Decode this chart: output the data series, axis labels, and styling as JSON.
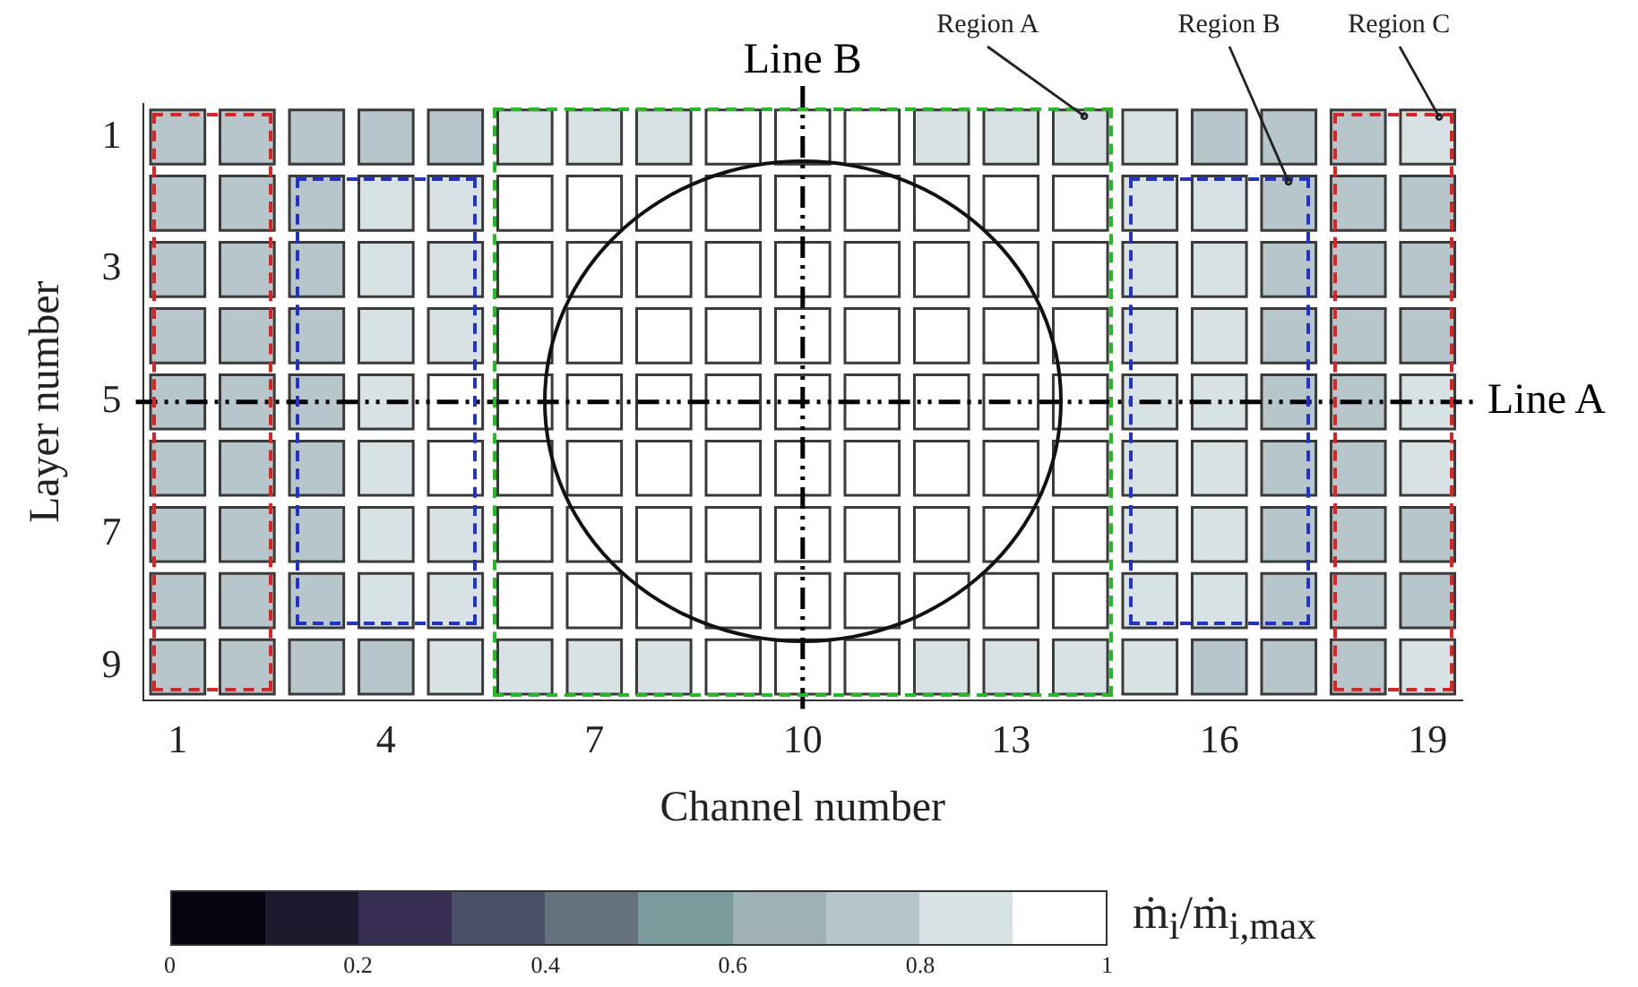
{
  "chart_data": {
    "type": "heatmap",
    "xlabel": "Channel number",
    "ylabel": "Layer number",
    "clabel": "ṁ$_{i}$/ṁ$_{i,max}$",
    "categories": [
      "1",
      null,
      null,
      "4",
      null,
      null,
      "7",
      null,
      null,
      "10",
      null,
      null,
      "13",
      null,
      null,
      "16",
      null,
      null,
      "19"
    ],
    "y_categories": [
      "1",
      null,
      "3",
      null,
      "5",
      null,
      "7",
      null,
      "9"
    ],
    "cells": [
      [
        0.75,
        0.75,
        0.75,
        0.75,
        0.75,
        0.85,
        0.85,
        0.85,
        0.95,
        0.95,
        0.95,
        0.85,
        0.85,
        0.85,
        0.85,
        0.75,
        0.75,
        0.75,
        0.85
      ],
      [
        0.75,
        0.75,
        0.75,
        0.85,
        0.85,
        0.95,
        0.95,
        0.95,
        0.95,
        0.95,
        0.95,
        0.95,
        0.95,
        0.95,
        0.85,
        0.85,
        0.75,
        0.75,
        0.75
      ],
      [
        0.75,
        0.75,
        0.75,
        0.85,
        0.85,
        0.95,
        0.95,
        0.95,
        0.95,
        0.95,
        0.95,
        0.95,
        0.95,
        0.95,
        0.85,
        0.85,
        0.75,
        0.75,
        0.75
      ],
      [
        0.75,
        0.75,
        0.75,
        0.85,
        0.85,
        0.95,
        0.95,
        0.95,
        0.95,
        0.95,
        0.95,
        0.95,
        0.95,
        0.95,
        0.85,
        0.85,
        0.75,
        0.75,
        0.75
      ],
      [
        0.75,
        0.75,
        0.75,
        0.85,
        0.95,
        0.95,
        0.95,
        0.95,
        0.95,
        0.95,
        0.95,
        0.95,
        0.95,
        0.95,
        0.85,
        0.85,
        0.75,
        0.75,
        0.85
      ],
      [
        0.75,
        0.75,
        0.75,
        0.85,
        0.95,
        0.95,
        0.95,
        0.95,
        0.95,
        0.95,
        0.95,
        0.95,
        0.95,
        0.95,
        0.85,
        0.85,
        0.75,
        0.75,
        0.85
      ],
      [
        0.75,
        0.75,
        0.75,
        0.85,
        0.85,
        0.95,
        0.95,
        0.95,
        0.95,
        0.95,
        0.95,
        0.95,
        0.95,
        0.95,
        0.85,
        0.85,
        0.75,
        0.75,
        0.75
      ],
      [
        0.75,
        0.75,
        0.75,
        0.85,
        0.85,
        0.95,
        0.95,
        0.95,
        0.95,
        0.95,
        0.95,
        0.95,
        0.95,
        0.95,
        0.85,
        0.85,
        0.75,
        0.75,
        0.75
      ],
      [
        0.75,
        0.75,
        0.75,
        0.75,
        0.85,
        0.85,
        0.85,
        0.85,
        0.95,
        0.95,
        0.95,
        0.85,
        0.85,
        0.85,
        0.85,
        0.75,
        0.75,
        0.75,
        0.85
      ]
    ],
    "clim": [
      0,
      1
    ],
    "cticks": [
      0,
      0.2,
      0.4,
      0.6,
      0.8,
      1
    ],
    "ref_lines": [
      {
        "axis": "y",
        "value": "5",
        "label": "Line A",
        "color": "#000000",
        "line_style": "dashed"
      },
      {
        "axis": "x",
        "value": "10",
        "label": "Line B",
        "color": "#000000",
        "line_style": "dashed"
      }
    ],
    "annotations": [
      "Region A",
      "Region B",
      "Region C"
    ]
  }
}
